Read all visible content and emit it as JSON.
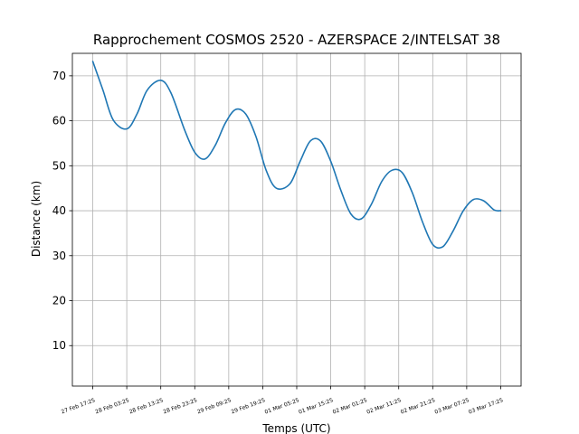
{
  "chart_data": {
    "type": "line",
    "title": "Rapprochement COSMOS 2520 - AZERSPACE 2/INTELSAT 38",
    "xlabel": "Temps (UTC)",
    "ylabel": "Distance (km)",
    "ylim": [
      1,
      75
    ],
    "yticks": [
      10,
      20,
      30,
      40,
      50,
      60,
      70
    ],
    "grid": true,
    "x_tick_labels": [
      "27 Feb 17:25",
      "28 Feb 03:25",
      "28 Feb 13:25",
      "28 Feb 23:25",
      "29 Feb 09:25",
      "29 Feb 19:25",
      "01 Mar 05:25",
      "01 Mar 15:25",
      "02 Mar 01:25",
      "02 Mar 11:25",
      "02 Mar 21:25",
      "03 Mar 07:25",
      "03 Mar 17:25"
    ],
    "series": [
      {
        "color": "#1f77b4",
        "x": [
          "27 Feb 17:25",
          "27 Feb 20:25",
          "27 Feb 23:25",
          "28 Feb 03:25",
          "28 Feb 06:25",
          "28 Feb 09:25",
          "28 Feb 13:25",
          "28 Feb 16:25",
          "28 Feb 20:25",
          "28 Feb 23:25",
          "29 Feb 02:25",
          "29 Feb 05:25",
          "29 Feb 08:25",
          "29 Feb 11:25",
          "29 Feb 14:25",
          "29 Feb 17:25",
          "29 Feb 20:25",
          "29 Feb 23:25",
          "01 Mar 03:25",
          "01 Mar 06:25",
          "01 Mar 09:25",
          "01 Mar 12:25",
          "01 Mar 15:25",
          "01 Mar 18:25",
          "01 Mar 21:25",
          "02 Mar 00:25",
          "02 Mar 03:25",
          "02 Mar 06:25",
          "02 Mar 09:25",
          "02 Mar 12:25",
          "02 Mar 15:25",
          "02 Mar 18:25",
          "02 Mar 21:25",
          "03 Mar 00:25",
          "03 Mar 03:25",
          "03 Mar 06:25",
          "03 Mar 09:25",
          "03 Mar 12:25",
          "03 Mar 15:25",
          "03 Mar 17:25"
        ],
        "values": [
          73.2,
          66.8,
          60.2,
          58.2,
          61.5,
          66.8,
          69.0,
          66.2,
          58.0,
          53.0,
          51.5,
          54.5,
          59.5,
          62.5,
          61.5,
          56.5,
          49.0,
          45.0,
          46.0,
          51.0,
          55.5,
          55.5,
          51.0,
          44.5,
          39.2,
          38.2,
          41.5,
          46.5,
          49.0,
          48.5,
          44.0,
          37.5,
          32.5,
          32.0,
          35.5,
          40.0,
          42.5,
          42.2,
          40.2,
          40.0
        ]
      }
    ]
  }
}
